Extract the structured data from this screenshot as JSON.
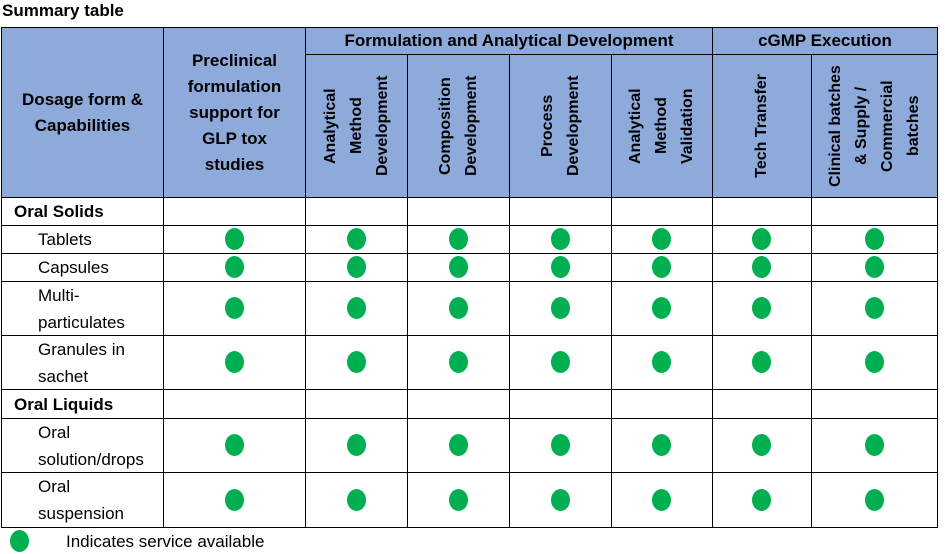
{
  "title": "Summary table",
  "table": {
    "header": {
      "first": "Dosage form & Capabilities",
      "preclinical": "Preclinical formulation support for GLP tox studies",
      "groups": [
        {
          "label": "Formulation and Analytical Development",
          "columns": [
            "Analytical Method Development",
            "Composition Development",
            "Process Development",
            "Analytical Method Validation"
          ]
        },
        {
          "label": "cGMP Execution",
          "columns": [
            "Tech Transfer",
            "Clinical batches & Supply / Commercial batches"
          ]
        }
      ]
    },
    "rows": [
      {
        "label": "Oral Solids",
        "group": true
      },
      {
        "label": "Tablets",
        "cells": [
          true,
          true,
          true,
          true,
          true,
          true,
          true
        ]
      },
      {
        "label": "Capsules",
        "cells": [
          true,
          true,
          true,
          true,
          true,
          true,
          true
        ]
      },
      {
        "label": "Multi-particulates",
        "cells": [
          true,
          true,
          true,
          true,
          true,
          true,
          true
        ]
      },
      {
        "label": "Granules in sachet",
        "cells": [
          true,
          true,
          true,
          true,
          true,
          true,
          true
        ]
      },
      {
        "label": "Oral Liquids",
        "group": true
      },
      {
        "label": "Oral solution/drops",
        "cells": [
          true,
          true,
          true,
          true,
          true,
          true,
          true
        ]
      },
      {
        "label": "Oral suspension",
        "cells": [
          true,
          true,
          true,
          true,
          true,
          true,
          true
        ]
      }
    ]
  },
  "legend": "Indicates service available"
}
